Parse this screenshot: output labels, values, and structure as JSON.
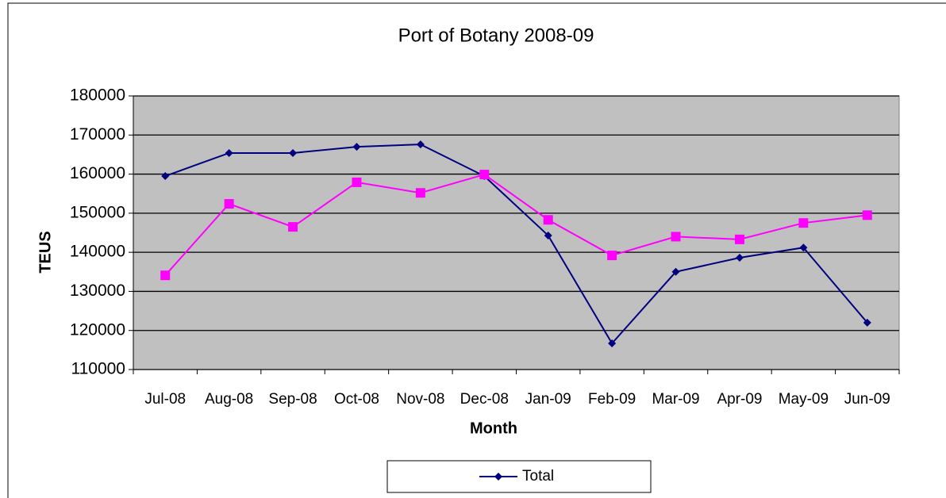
{
  "chart_data": {
    "type": "line",
    "title": "Port of Botany 2008-09",
    "x_label": "Month",
    "y_label": "TEUS",
    "categories": [
      "Jul-08",
      "Aug-08",
      "Sep-08",
      "Oct-08",
      "Nov-08",
      "Dec-08",
      "Jan-09",
      "Feb-09",
      "Mar-09",
      "Apr-09",
      "May-09",
      "Jun-09"
    ],
    "series": [
      {
        "name": "Total",
        "color": "#000080",
        "marker": "diamond",
        "values": [
          159500,
          165400,
          165400,
          167000,
          167600,
          159500,
          144300,
          116700,
          135000,
          138600,
          141200,
          122000
        ]
      },
      {
        "color": "#ff00ff",
        "marker": "square",
        "values": [
          134100,
          152400,
          146500,
          157900,
          155200,
          159900,
          148300,
          139200,
          144000,
          143300,
          147500,
          149500
        ]
      }
    ],
    "ylim": [
      110000,
      180000
    ],
    "yticks": [
      110000,
      120000,
      130000,
      140000,
      150000,
      160000,
      170000,
      180000
    ],
    "grid": true,
    "legend": "bottom"
  }
}
